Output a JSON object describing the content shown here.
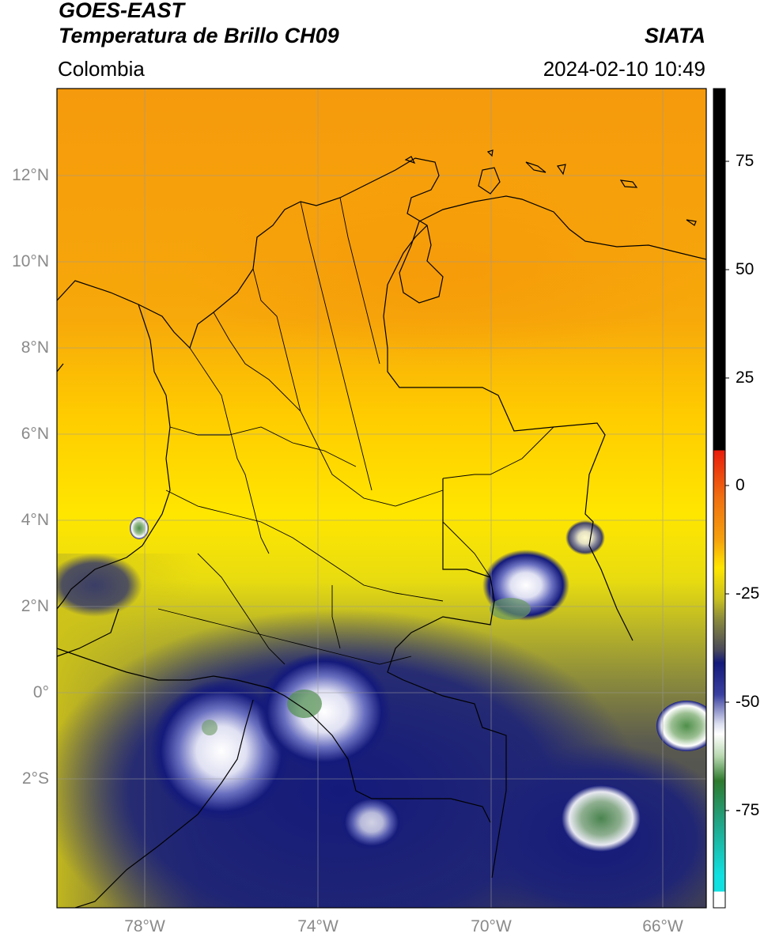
{
  "header": {
    "satellite": "GOES-EAST",
    "product": "Temperatura de Brillo CH09",
    "agency": "SIATA",
    "region": "Colombia",
    "datetime": "2024-02-10 10:49"
  },
  "axes": {
    "lat_ticks": [
      "12°N",
      "10°N",
      "8°N",
      "6°N",
      "4°N",
      "2°N",
      "0°",
      "2°S"
    ],
    "lon_ticks": [
      "78°W",
      "74°W",
      "70°W",
      "66°W"
    ]
  },
  "colorbar": {
    "ticks": [
      "75",
      "50",
      "25",
      "0",
      "-25",
      "-50",
      "-75"
    ],
    "colors": {
      "black": "#000000",
      "red": "#e81c0c",
      "orange": "#f59a0c",
      "yellow": "#ffe600",
      "olive": "#8c8c3c",
      "gray": "#4a4a5a",
      "navy": "#141a7a",
      "white": "#ffffff",
      "green": "#2e7a2e",
      "teal": "#20a88c",
      "cyan": "#10e0e0"
    }
  }
}
